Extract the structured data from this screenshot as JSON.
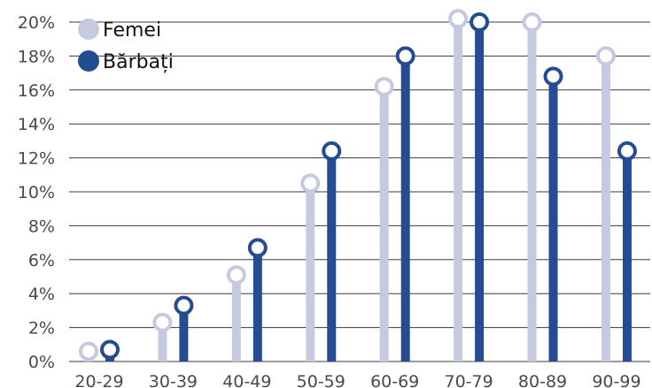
{
  "chart_data": {
    "type": "bar",
    "title": "",
    "xlabel": "",
    "ylabel": "",
    "categories": [
      "20-29",
      "30-39",
      "40-49",
      "50-59",
      "60-69",
      "70-79",
      "80-89",
      "90-99"
    ],
    "series": [
      {
        "name": "Femei",
        "color": "#c5cae0",
        "values": [
          0.6,
          2.3,
          5.1,
          10.5,
          16.2,
          20.2,
          20.0,
          18.0
        ]
      },
      {
        "name": "Bărbați",
        "color": "#234c92",
        "values": [
          0.7,
          3.3,
          6.7,
          12.4,
          18.0,
          20.0,
          16.8,
          12.4
        ]
      }
    ],
    "ylim": [
      0,
      20
    ],
    "yticks": [
      "0%",
      "2%",
      "4%",
      "6%",
      "8%",
      "10%",
      "12%",
      "14%",
      "16%",
      "18%",
      "20%"
    ],
    "grid": true,
    "legend_position": "top-left",
    "marker": "hollow-circle"
  }
}
